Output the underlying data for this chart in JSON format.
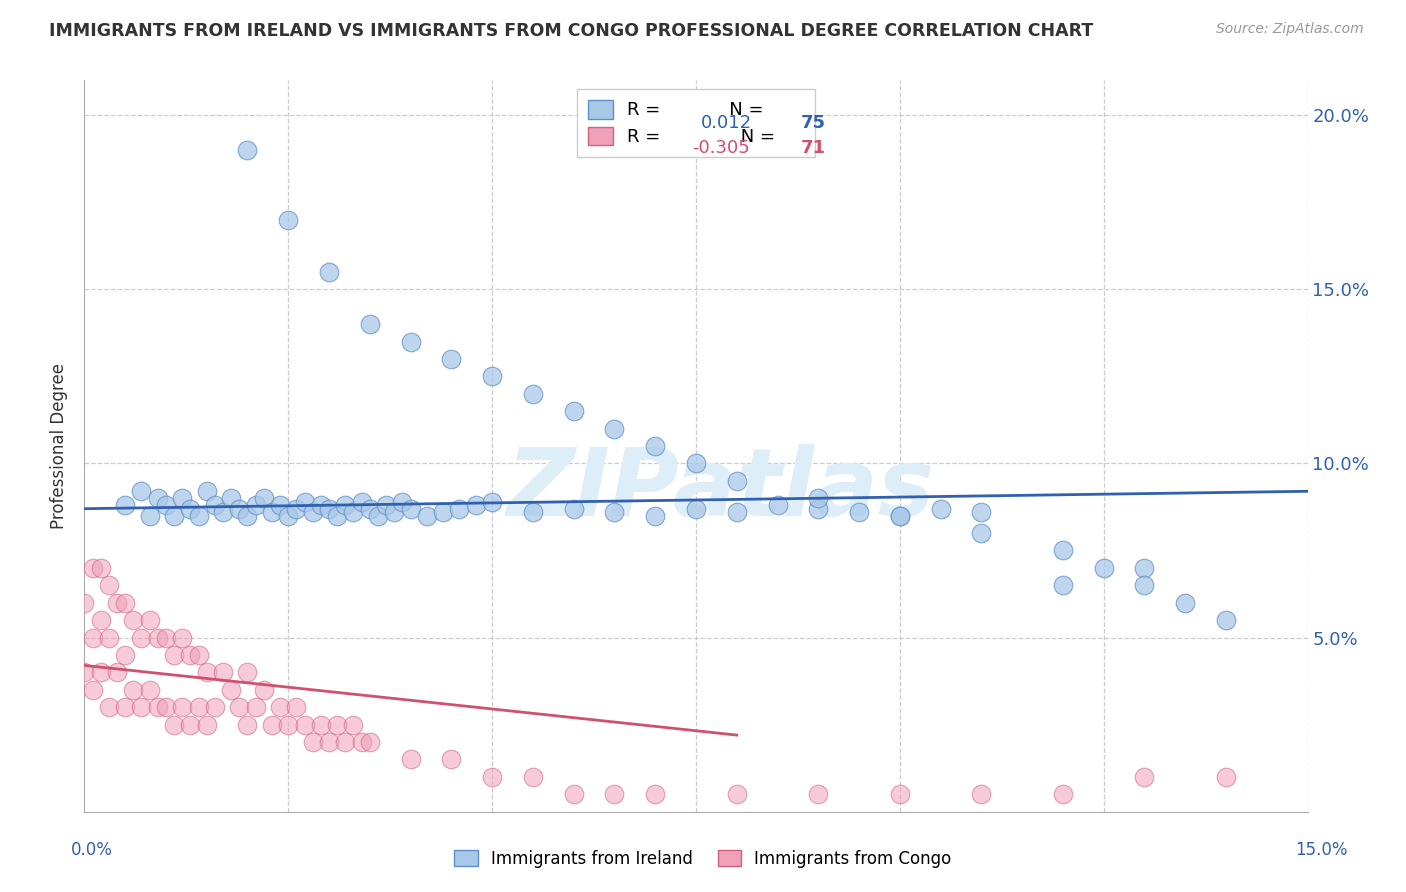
{
  "title": "IMMIGRANTS FROM IRELAND VS IMMIGRANTS FROM CONGO PROFESSIONAL DEGREE CORRELATION CHART",
  "source": "Source: ZipAtlas.com",
  "ylabel": "Professional Degree",
  "x_lim": [
    0.0,
    0.15
  ],
  "y_lim": [
    0.0,
    0.21
  ],
  "y_ticks": [
    0.0,
    0.05,
    0.1,
    0.15,
    0.2
  ],
  "y_tick_labels_right": [
    "",
    "5.0%",
    "10.0%",
    "15.0%",
    "20.0%"
  ],
  "legend_ireland_r": "0.012",
  "legend_ireland_n": "75",
  "legend_congo_r": "-0.305",
  "legend_congo_n": "71",
  "color_ireland": "#a8c8e8",
  "color_congo": "#f0a0b8",
  "edge_ireland": "#6090c8",
  "edge_congo": "#d06080",
  "trendline_ireland": "#3060b0",
  "trendline_congo": "#d05070",
  "watermark_color": "#ddeef8",
  "ireland_x": [
    0.005,
    0.007,
    0.008,
    0.009,
    0.01,
    0.011,
    0.012,
    0.013,
    0.014,
    0.015,
    0.016,
    0.017,
    0.018,
    0.019,
    0.02,
    0.021,
    0.022,
    0.023,
    0.024,
    0.025,
    0.026,
    0.027,
    0.028,
    0.029,
    0.03,
    0.031,
    0.032,
    0.033,
    0.034,
    0.035,
    0.036,
    0.037,
    0.038,
    0.039,
    0.04,
    0.042,
    0.044,
    0.046,
    0.048,
    0.05,
    0.055,
    0.06,
    0.065,
    0.07,
    0.075,
    0.08,
    0.085,
    0.09,
    0.095,
    0.1,
    0.105,
    0.11,
    0.12,
    0.13,
    0.02,
    0.025,
    0.03,
    0.035,
    0.04,
    0.045,
    0.05,
    0.055,
    0.06,
    0.065,
    0.07,
    0.075,
    0.08,
    0.09,
    0.1,
    0.11,
    0.12,
    0.125,
    0.13,
    0.135,
    0.14
  ],
  "ireland_y": [
    0.088,
    0.092,
    0.085,
    0.09,
    0.088,
    0.085,
    0.09,
    0.087,
    0.085,
    0.092,
    0.088,
    0.086,
    0.09,
    0.087,
    0.085,
    0.088,
    0.09,
    0.086,
    0.088,
    0.085,
    0.087,
    0.089,
    0.086,
    0.088,
    0.087,
    0.085,
    0.088,
    0.086,
    0.089,
    0.087,
    0.085,
    0.088,
    0.086,
    0.089,
    0.087,
    0.085,
    0.086,
    0.087,
    0.088,
    0.089,
    0.086,
    0.087,
    0.086,
    0.085,
    0.087,
    0.086,
    0.088,
    0.087,
    0.086,
    0.085,
    0.087,
    0.086,
    0.065,
    0.07,
    0.19,
    0.17,
    0.155,
    0.14,
    0.135,
    0.13,
    0.125,
    0.12,
    0.115,
    0.11,
    0.105,
    0.1,
    0.095,
    0.09,
    0.085,
    0.08,
    0.075,
    0.07,
    0.065,
    0.06,
    0.055
  ],
  "congo_x": [
    0.0,
    0.0,
    0.001,
    0.001,
    0.001,
    0.002,
    0.002,
    0.002,
    0.003,
    0.003,
    0.003,
    0.004,
    0.004,
    0.005,
    0.005,
    0.005,
    0.006,
    0.006,
    0.007,
    0.007,
    0.008,
    0.008,
    0.009,
    0.009,
    0.01,
    0.01,
    0.011,
    0.011,
    0.012,
    0.012,
    0.013,
    0.013,
    0.014,
    0.014,
    0.015,
    0.015,
    0.016,
    0.017,
    0.018,
    0.019,
    0.02,
    0.02,
    0.021,
    0.022,
    0.023,
    0.024,
    0.025,
    0.026,
    0.027,
    0.028,
    0.029,
    0.03,
    0.031,
    0.032,
    0.033,
    0.034,
    0.035,
    0.04,
    0.045,
    0.05,
    0.055,
    0.06,
    0.065,
    0.07,
    0.08,
    0.09,
    0.1,
    0.11,
    0.12,
    0.13,
    0.14
  ],
  "congo_y": [
    0.04,
    0.06,
    0.035,
    0.05,
    0.07,
    0.04,
    0.055,
    0.07,
    0.03,
    0.05,
    0.065,
    0.04,
    0.06,
    0.03,
    0.045,
    0.06,
    0.035,
    0.055,
    0.03,
    0.05,
    0.035,
    0.055,
    0.03,
    0.05,
    0.03,
    0.05,
    0.025,
    0.045,
    0.03,
    0.05,
    0.025,
    0.045,
    0.03,
    0.045,
    0.025,
    0.04,
    0.03,
    0.04,
    0.035,
    0.03,
    0.025,
    0.04,
    0.03,
    0.035,
    0.025,
    0.03,
    0.025,
    0.03,
    0.025,
    0.02,
    0.025,
    0.02,
    0.025,
    0.02,
    0.025,
    0.02,
    0.02,
    0.015,
    0.015,
    0.01,
    0.01,
    0.005,
    0.005,
    0.005,
    0.005,
    0.005,
    0.005,
    0.005,
    0.005,
    0.01,
    0.01
  ],
  "ireland_trendline_x": [
    0.0,
    0.15
  ],
  "ireland_trendline_y": [
    0.087,
    0.092
  ],
  "congo_trendline_x": [
    0.0,
    0.08
  ],
  "congo_trendline_y": [
    0.042,
    0.022
  ]
}
